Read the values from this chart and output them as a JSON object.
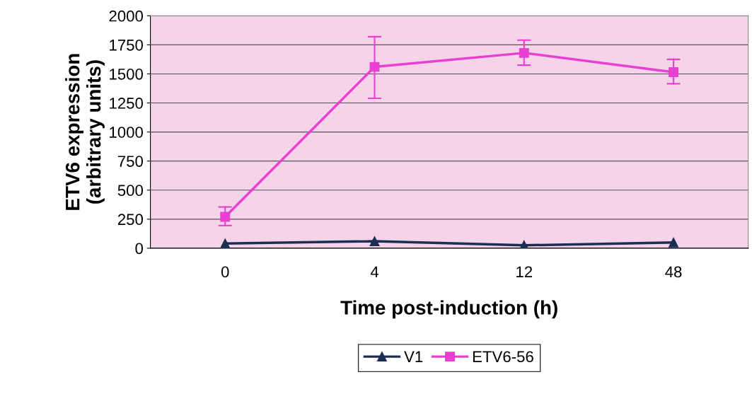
{
  "chart_data": {
    "type": "line",
    "xlabel": "Time post-induction (h)",
    "ylabel": "ETV6 expression\n(arbitrary units)",
    "categories": [
      "0",
      "4",
      "12",
      "48"
    ],
    "series": [
      {
        "name": "V1",
        "color": "#1b2f52",
        "marker": "triangle",
        "values": [
          40,
          60,
          25,
          50
        ]
      },
      {
        "name": "ETV6-56",
        "color": "#e840d0",
        "marker": "square",
        "values": [
          270,
          1560,
          1680,
          1515
        ],
        "errors": [
          [
            195,
            355
          ],
          [
            1290,
            1820
          ],
          [
            1575,
            1790
          ],
          [
            1415,
            1625
          ]
        ]
      }
    ],
    "ylim": [
      0,
      2000
    ],
    "yticks": [
      0,
      250,
      500,
      750,
      1000,
      1250,
      1500,
      1750,
      2000
    ],
    "grid": "y",
    "legend": "bottom",
    "line_style": "solid"
  }
}
